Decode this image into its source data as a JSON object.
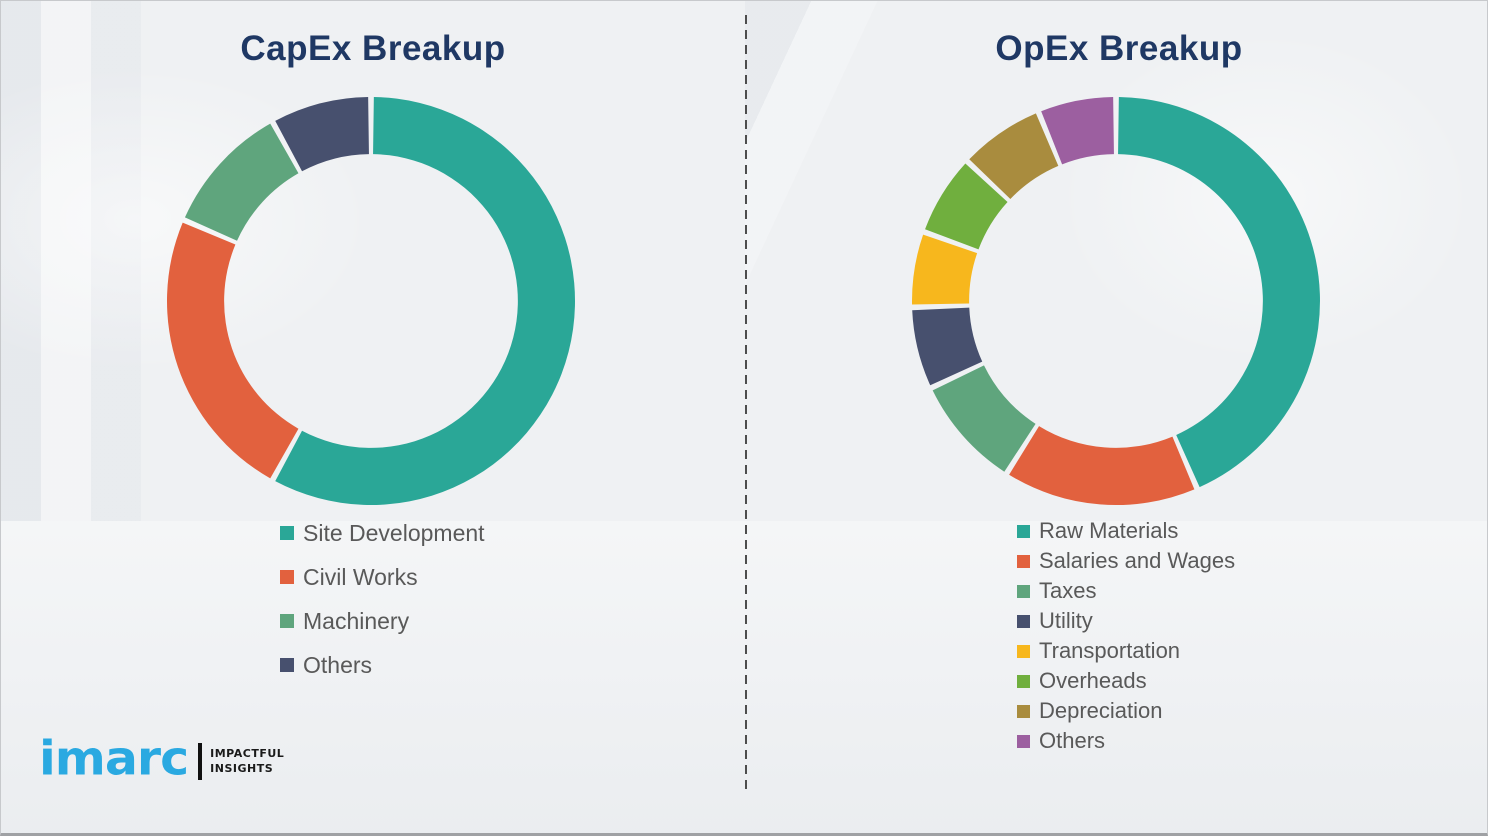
{
  "page": {
    "background_color": "#eff1f3",
    "title_color": "#1F3864",
    "legend_text_color": "#595959",
    "divider_color": "#4d4d4d"
  },
  "chart_data": [
    {
      "type": "pie",
      "subtype": "donut",
      "title": "CapEx Breakup",
      "labels": [
        "Site Development",
        "Civil Works",
        "Machinery",
        "Others"
      ],
      "values": [
        58,
        23.5,
        10.5,
        8
      ],
      "colors": [
        "#2AA797",
        "#E2613E",
        "#5FA57D",
        "#47506E"
      ],
      "unit": "percent",
      "start_angle_deg": 0,
      "direction": "clockwise",
      "inner_radius_ratio": 0.72,
      "legend_position": "below-left"
    },
    {
      "type": "pie",
      "subtype": "donut",
      "title": "OpEx Breakup",
      "labels": [
        "Raw Materials",
        "Salaries and Wages",
        "Taxes",
        "Utility",
        "Transportation",
        "Overheads",
        "Depreciation",
        "Others"
      ],
      "values": [
        43.5,
        15.5,
        9,
        6.5,
        6,
        6.5,
        6.8,
        6.2
      ],
      "colors": [
        "#2AA797",
        "#E2613E",
        "#5FA57D",
        "#47506E",
        "#F7B71D",
        "#70AF3E",
        "#A98C3E",
        "#9C5FA0"
      ],
      "unit": "percent",
      "start_angle_deg": 0,
      "direction": "clockwise",
      "inner_radius_ratio": 0.72,
      "legend_position": "below-left"
    }
  ],
  "logo": {
    "brand": "imarc",
    "brand_color": "#2AA9E1",
    "tagline_line1": "IMPACTFUL",
    "tagline_line2": "INSIGHTS",
    "tagline_color": "#1a1a1a",
    "separator_color": "#111111"
  }
}
